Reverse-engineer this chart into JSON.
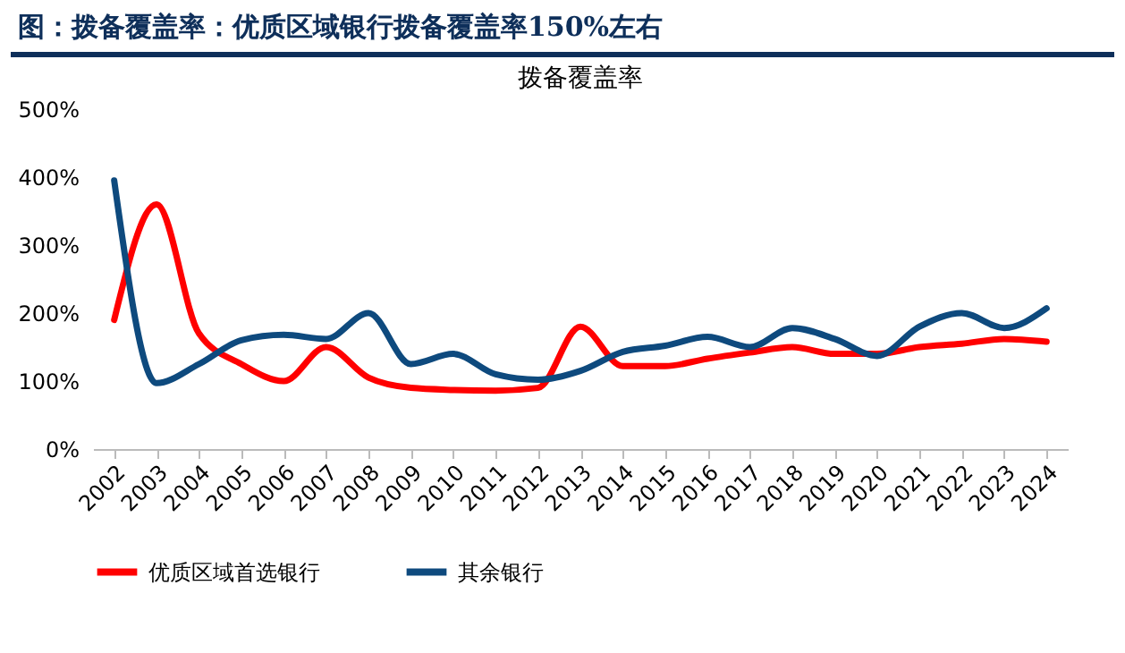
{
  "chart_data": {
    "type": "line",
    "title": "图：拨备覆盖率：优质区域银行拨备覆盖率150%左右",
    "subtitle": "拨备覆盖率",
    "categories": [
      "2002",
      "2003",
      "2004",
      "2005",
      "2006",
      "2007",
      "2008",
      "2009",
      "2010",
      "2011",
      "2012",
      "2013",
      "2014",
      "2015",
      "2016",
      "2017",
      "2018",
      "2019",
      "2020",
      "2021",
      "2022",
      "2023",
      "2024"
    ],
    "series": [
      {
        "name": "优质区域首选银行",
        "color": "#ff0000",
        "values": [
          190,
          360,
          170,
          125,
          100,
          150,
          105,
          90,
          87,
          86,
          90,
          180,
          122,
          122,
          133,
          142,
          150,
          140,
          140,
          150,
          155,
          162,
          158
        ]
      },
      {
        "name": "其余银行",
        "color": "#0e4a7e",
        "values": [
          395,
          97,
          125,
          160,
          168,
          162,
          200,
          125,
          140,
          110,
          102,
          115,
          143,
          152,
          165,
          150,
          178,
          162,
          137,
          180,
          200,
          178,
          207
        ]
      }
    ],
    "ylim": [
      0,
      500
    ],
    "yticks": [
      {
        "value": 0,
        "label": "0%"
      },
      {
        "value": 100,
        "label": "100%"
      },
      {
        "value": 200,
        "label": "200%"
      },
      {
        "value": 300,
        "label": "300%"
      },
      {
        "value": 400,
        "label": "400%"
      },
      {
        "value": 500,
        "label": "500%"
      }
    ],
    "grid": false,
    "legend": "bottom"
  }
}
